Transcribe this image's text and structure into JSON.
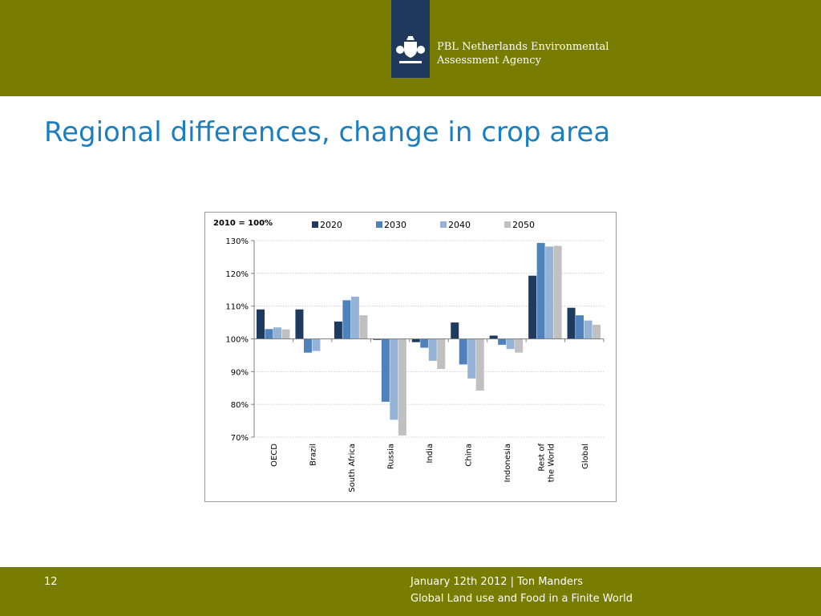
{
  "header": {
    "org_line1": "PBL Netherlands Environmental",
    "org_line2": "Assessment Agency",
    "logo_icon": "royal-coat-of-arms-icon",
    "band_color": "#787c00",
    "logo_color": "#1f3a5c"
  },
  "slide": {
    "title": "Regional differences, change in crop area",
    "title_color": "#1a7fc1"
  },
  "footer": {
    "page_number": "12",
    "line1": "January 12th 2012 | Ton Manders",
    "line2": "Global Land use and Food in a Finite World"
  },
  "chart_data": {
    "type": "bar",
    "title": "2010 = 100%",
    "categories": [
      [
        "OECD"
      ],
      [
        "Brazil"
      ],
      [
        "South Africa"
      ],
      [
        "Russia"
      ],
      [
        "India"
      ],
      [
        "China"
      ],
      [
        "Indonesia"
      ],
      [
        "Rest of",
        "the World"
      ],
      [
        "Global"
      ]
    ],
    "series": [
      {
        "name": "2020",
        "color": "#1f3a5f",
        "values": [
          109,
          109,
          105.3,
          99.7,
          99,
          105,
          101,
          119.3,
          109.5
        ]
      },
      {
        "name": "2030",
        "color": "#4f81bd",
        "values": [
          103,
          95.8,
          111.8,
          80.8,
          97.3,
          92.2,
          98.2,
          129.3,
          107.2
        ]
      },
      {
        "name": "2040",
        "color": "#95b3d7",
        "values": [
          103.5,
          96.3,
          112.9,
          75.3,
          93.3,
          87.9,
          96.9,
          128.2,
          105.6
        ]
      },
      {
        "name": "2050",
        "color": "#c0c0c0",
        "values": [
          102.9,
          null,
          107.2,
          70.5,
          90.8,
          84.2,
          95.8,
          128.4,
          104.3
        ]
      }
    ],
    "yticks": [
      "130%",
      "120%",
      "110%",
      "100%",
      "90%",
      "80%",
      "70%"
    ],
    "ylim": [
      70,
      130
    ],
    "baseline": 100,
    "grid": true,
    "legend_position": "top"
  }
}
